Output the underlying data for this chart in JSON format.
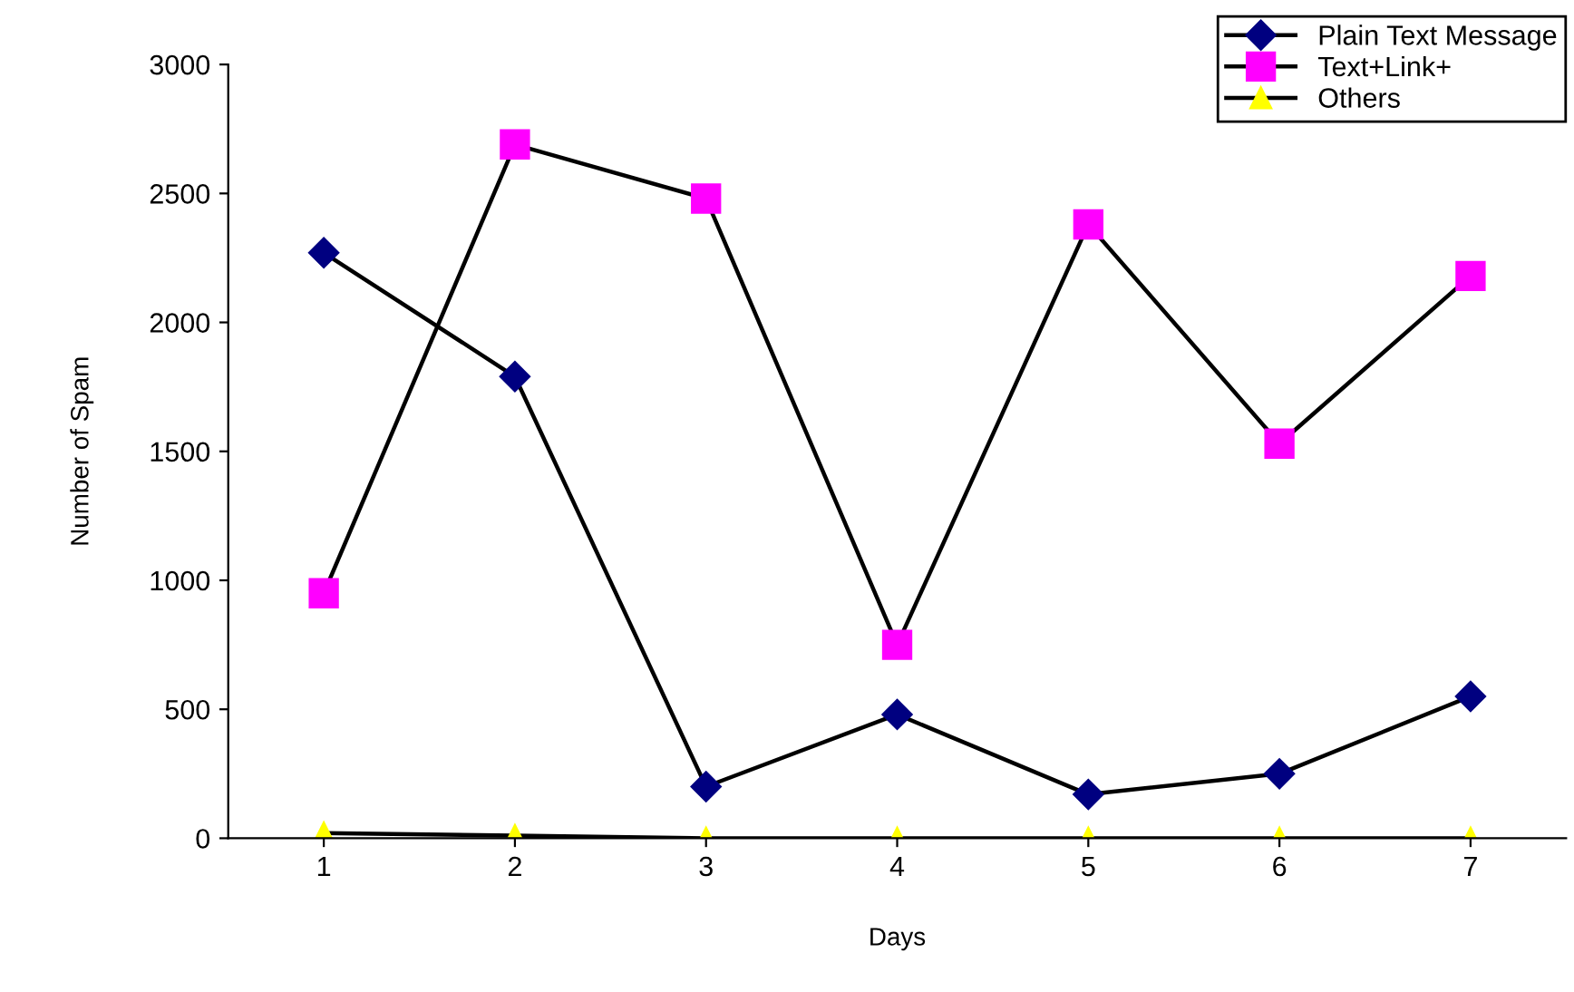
{
  "chart_data": {
    "type": "line",
    "xlabel": "Days",
    "ylabel": "Number of Spam",
    "categories": [
      "1",
      "2",
      "3",
      "4",
      "5",
      "6",
      "7"
    ],
    "series": [
      {
        "name": "Plain Text Message",
        "color": "#000080",
        "marker": "diamond",
        "values": [
          2270,
          1790,
          200,
          480,
          170,
          250,
          550
        ]
      },
      {
        "name": "Text+Link+",
        "color": "#ff00ff",
        "marker": "square",
        "values": [
          950,
          2690,
          2480,
          750,
          2380,
          1530,
          2180
        ]
      },
      {
        "name": "Others",
        "color": "#ffff00",
        "marker": "triangle",
        "values": [
          20,
          10,
          0,
          0,
          0,
          0,
          0
        ]
      }
    ],
    "ylim": [
      0,
      3000
    ],
    "yticks": [
      0,
      500,
      1000,
      1500,
      2000,
      2500,
      3000
    ],
    "grid": false,
    "legend": "top right",
    "line_style": "solid"
  }
}
